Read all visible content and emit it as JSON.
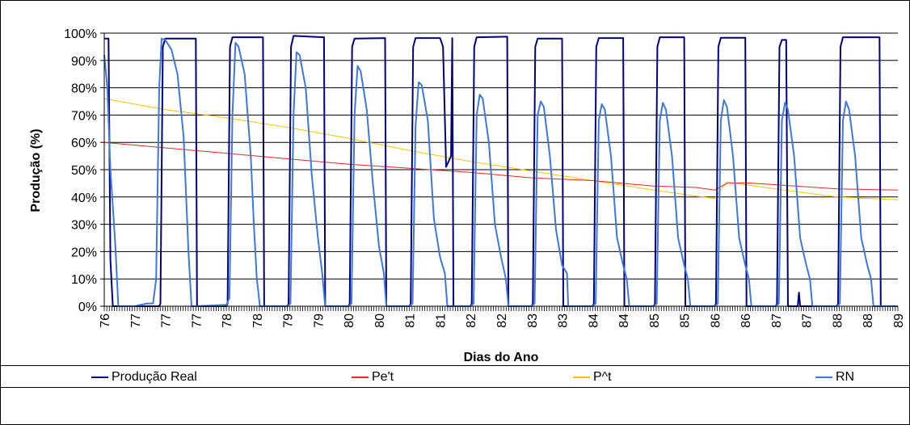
{
  "colors": {
    "real": "#000080",
    "pet": "#E8281E",
    "pt": "#F5C400",
    "rn": "#3C78E0"
  },
  "chart_data": {
    "type": "line",
    "title": "",
    "xlabel": "Dias do Ano",
    "ylabel": "Produção (%)",
    "xlim": [
      76,
      89
    ],
    "ylim": [
      0,
      100
    ],
    "y_ticks": [
      "0%",
      "10%",
      "20%",
      "30%",
      "40%",
      "50%",
      "60%",
      "70%",
      "80%",
      "90%",
      "100%"
    ],
    "x_tick_labels": [
      "76",
      "77",
      "77",
      "77",
      "78",
      "78",
      "79",
      "79",
      "80",
      "80",
      "81",
      "81",
      "82",
      "82",
      "83",
      "83",
      "84",
      "84",
      "85",
      "85",
      "86",
      "86",
      "87",
      "87",
      "88",
      "88",
      "89"
    ],
    "grid": "horizontal",
    "legend_position": "bottom",
    "series": [
      {
        "name": "Produção Real",
        "x": [
          76.0,
          76.07,
          76.1,
          76.14,
          76.9,
          76.92,
          76.96,
          77.0,
          77.5,
          77.52,
          78.0,
          78.02,
          78.06,
          78.1,
          78.6,
          78.62,
          79.0,
          79.02,
          79.06,
          79.1,
          79.6,
          79.62,
          80.0,
          80.02,
          80.06,
          80.1,
          80.6,
          80.62,
          81.0,
          81.02,
          81.06,
          81.1,
          81.5,
          81.55,
          81.6,
          81.68,
          81.7,
          81.72,
          82.0,
          82.02,
          82.06,
          82.1,
          82.6,
          82.62,
          83.0,
          83.02,
          83.06,
          83.1,
          83.5,
          83.52,
          84.0,
          84.02,
          84.06,
          84.1,
          84.5,
          84.52,
          85.0,
          85.02,
          85.06,
          85.1,
          85.5,
          85.52,
          86.0,
          86.02,
          86.06,
          86.1,
          86.5,
          86.52,
          87.0,
          87.02,
          87.06,
          87.1,
          87.17,
          87.2,
          87.36,
          87.38,
          87.4,
          87.42,
          87.9,
          87.92,
          88.0,
          88.02,
          88.06,
          88.1,
          88.7,
          88.72,
          89.0
        ],
        "values": [
          98,
          98,
          17,
          0,
          0,
          1,
          95,
          98,
          98,
          0,
          0,
          1,
          95,
          98.5,
          98.5,
          0,
          0,
          1,
          95,
          99,
          98.5,
          0,
          0,
          1,
          95,
          98,
          98.2,
          0,
          0,
          1,
          95,
          98.2,
          98.2,
          95,
          51,
          55,
          98.2,
          0,
          0,
          1,
          95,
          98.5,
          98.7,
          0,
          0,
          1,
          95,
          98,
          98,
          0,
          0,
          1,
          95,
          98.2,
          98.2,
          0,
          0,
          1,
          95,
          98.5,
          98.5,
          0,
          0,
          1,
          95,
          98.3,
          98.3,
          0,
          0,
          1,
          95,
          97.5,
          97.5,
          0,
          0,
          5,
          0,
          0,
          0,
          0,
          0,
          1,
          95,
          98.5,
          98.5,
          0,
          0
        ]
      },
      {
        "name": "Pe't",
        "x": [
          76.0,
          77.0,
          78.0,
          79.0,
          80.0,
          81.0,
          82.0,
          83.0,
          84.0,
          85.0,
          85.7,
          86.0,
          86.2,
          86.5,
          87.0,
          88.0,
          89.0
        ],
        "values": [
          60,
          58,
          56,
          54,
          52,
          50.5,
          49,
          47,
          46,
          44,
          43.5,
          42.5,
          45,
          45.2,
          44.5,
          43,
          42.5
        ]
      },
      {
        "name": "P^t",
        "x": [
          76.0,
          77.0,
          78.0,
          79.0,
          80.0,
          81.0,
          82.0,
          83.0,
          84.0,
          85.0,
          85.8,
          86.0,
          86.2,
          86.5,
          87.0,
          88.0,
          89.0
        ],
        "values": [
          76,
          72,
          69,
          65.5,
          61.5,
          57,
          53,
          49.5,
          46,
          42.5,
          40,
          39.5,
          45.5,
          44.5,
          43,
          40,
          39
        ]
      },
      {
        "name": "RN",
        "x": [
          76.0,
          76.05,
          76.1,
          76.18,
          76.22,
          76.23,
          76.5,
          76.7,
          76.8,
          76.85,
          76.9,
          76.94,
          77.0,
          77.1,
          77.2,
          77.3,
          77.38,
          77.43,
          77.46,
          77.5,
          78.0,
          78.05,
          78.1,
          78.15,
          78.2,
          78.3,
          78.4,
          78.45,
          78.5,
          78.55,
          79.0,
          79.05,
          79.1,
          79.15,
          79.2,
          79.3,
          79.4,
          79.5,
          79.57,
          79.62,
          80.0,
          80.05,
          80.1,
          80.15,
          80.2,
          80.3,
          80.4,
          80.5,
          80.58,
          80.62,
          81.0,
          81.05,
          81.1,
          81.15,
          81.2,
          81.3,
          81.4,
          81.5,
          81.58,
          81.62,
          82.0,
          82.05,
          82.1,
          82.15,
          82.2,
          82.3,
          82.4,
          82.5,
          82.58,
          82.62,
          83.0,
          83.05,
          83.1,
          83.15,
          83.2,
          83.3,
          83.4,
          83.5,
          83.58,
          83.6,
          84.0,
          84.05,
          84.1,
          84.15,
          84.2,
          84.3,
          84.4,
          84.5,
          84.56,
          84.6,
          85.0,
          85.05,
          85.1,
          85.15,
          85.2,
          85.3,
          85.4,
          85.5,
          85.56,
          85.6,
          86.0,
          86.05,
          86.1,
          86.15,
          86.2,
          86.3,
          86.4,
          86.5,
          86.56,
          86.6,
          87.0,
          87.05,
          87.1,
          87.15,
          87.2,
          87.3,
          87.4,
          87.5,
          87.56,
          87.6,
          88.0,
          88.05,
          88.1,
          88.15,
          88.2,
          88.3,
          88.4,
          88.5,
          88.56,
          88.6,
          89.0
        ],
        "values": [
          92,
          80,
          50,
          23,
          5,
          0,
          0,
          1,
          1,
          10,
          80,
          98,
          97.5,
          94,
          85,
          62,
          20,
          0,
          0,
          0,
          0.5,
          3,
          70,
          96.5,
          95,
          85,
          55,
          30,
          10,
          0,
          0,
          1,
          70,
          93,
          92,
          80,
          48,
          25,
          12,
          0,
          0,
          1,
          70,
          88,
          86,
          72,
          45,
          22,
          12,
          0,
          0,
          1,
          66,
          82,
          81,
          68,
          32,
          18,
          12,
          0,
          0,
          1,
          70,
          77.5,
          76,
          60,
          30,
          18,
          10,
          0,
          0,
          1,
          70,
          75,
          73,
          55,
          28,
          15,
          12,
          0,
          0,
          1,
          68,
          74,
          72,
          55,
          25,
          15,
          10,
          0,
          0,
          1,
          68,
          74.5,
          72,
          55,
          25,
          15,
          10,
          0,
          0,
          1,
          68,
          75.5,
          73,
          55,
          25,
          15,
          10,
          0,
          0,
          1,
          68,
          74.5,
          72,
          55,
          25,
          15,
          10,
          0,
          0,
          1,
          68,
          75,
          72,
          55,
          25,
          15,
          10,
          0,
          0
        ]
      }
    ]
  }
}
